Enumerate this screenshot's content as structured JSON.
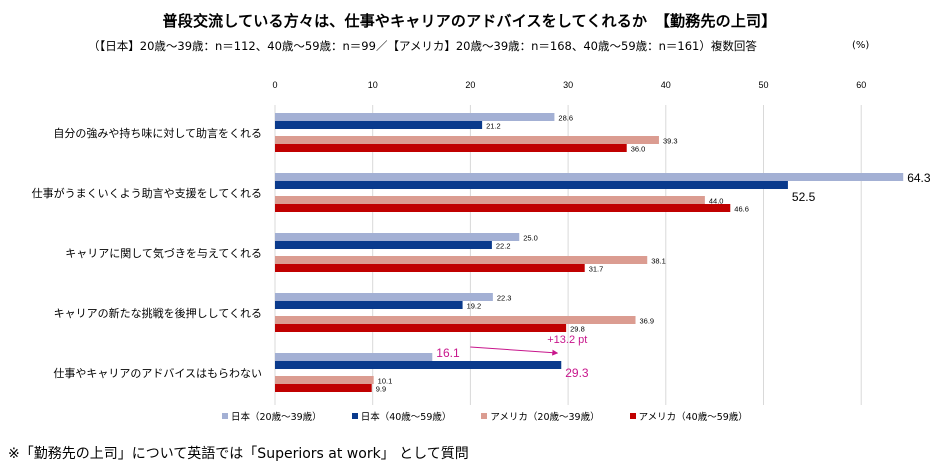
{
  "chart_data": {
    "type": "bar",
    "orientation": "horizontal",
    "title": "普段交流している方々は、仕事やキャリアのアドバイスをしてくれるか　【勤務先の上司】",
    "subtitle": "（【日本】20歳～39歳：n＝112、40歳～59歳：n＝99／【アメリカ】20歳～39歳：n＝168、40歳～59歳：n＝161）複数回答",
    "unit": "(%)",
    "xlim": [
      0,
      65
    ],
    "ticks": [
      0,
      10,
      20,
      30,
      40,
      50,
      60
    ],
    "grid": true,
    "legend_position": "bottom",
    "categories": [
      "自分の強みや持ち味に対して助言をくれる",
      "仕事がうまくいくよう助言や支援をしてくれる",
      "キャリアに関して気づきを与えてくれる",
      "キャリアの新たな挑戦を後押ししてくれる",
      "仕事やキャリアのアドバイスはもらわない"
    ],
    "series": [
      {
        "name": "日本（20歳～39歳）",
        "color": "#A3B0D4",
        "values": [
          28.6,
          64.3,
          25.0,
          22.3,
          16.1
        ]
      },
      {
        "name": "日本（40歳～59歳）",
        "color": "#0A3A8C",
        "values": [
          21.2,
          52.5,
          22.2,
          19.2,
          29.3
        ]
      },
      {
        "name": "アメリカ（20歳～39歳）",
        "color": "#DB9C91",
        "values": [
          39.3,
          44.0,
          38.1,
          36.9,
          10.1
        ]
      },
      {
        "name": "アメリカ（40歳～59歳）",
        "color": "#C00000",
        "values": [
          36.0,
          46.6,
          31.7,
          29.8,
          9.9
        ]
      }
    ],
    "annotation": {
      "text": "+13.2 pt",
      "color": "#C8168C",
      "from_value": 16.1,
      "to_value": 29.3
    }
  },
  "footnote": "※「勤務先の上司」について英語では「Superiors at work」 として質問"
}
